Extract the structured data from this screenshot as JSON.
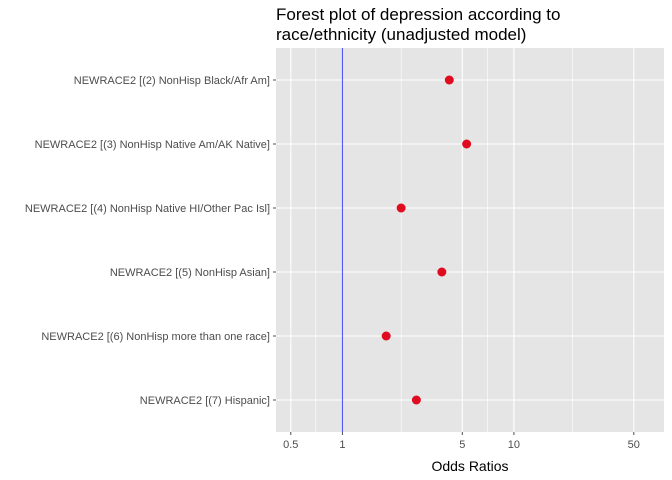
{
  "chart_data": {
    "type": "scatter",
    "title_lines": [
      "Forest plot of depression according to",
      "race/ethnicity (unadjusted model)"
    ],
    "xlabel": "Odds Ratios",
    "ylabel": "",
    "x_scale": "log10",
    "xlim": [
      0.41,
      75
    ],
    "x_ticks": [
      0.5,
      1,
      5,
      10,
      50
    ],
    "x_tick_labels": [
      "0.5",
      "1",
      "5",
      "10",
      "50"
    ],
    "x_minor_ticks": [
      0.7,
      2.2,
      7,
      22
    ],
    "reference_line": 1,
    "grid": true,
    "colors": {
      "panel": "#e5e5e5",
      "grid": "#ffffff",
      "point": "#e00b1f",
      "reference_line": "#4646ee",
      "tick": "#4d4d4d"
    },
    "categories": [
      "NEWRACE2 [(2) NonHisp Black/Afr Am]",
      "NEWRACE2 [(3) NonHisp Native Am/AK Native]",
      "NEWRACE2 [(4) NonHisp Native HI/Other Pac Isl]",
      "NEWRACE2 [(5) NonHisp Asian]",
      "NEWRACE2 [(6) NonHisp more than one race]",
      "NEWRACE2 [(7) Hispanic]"
    ],
    "values": [
      4.2,
      5.3,
      2.2,
      3.8,
      1.8,
      2.7
    ]
  }
}
